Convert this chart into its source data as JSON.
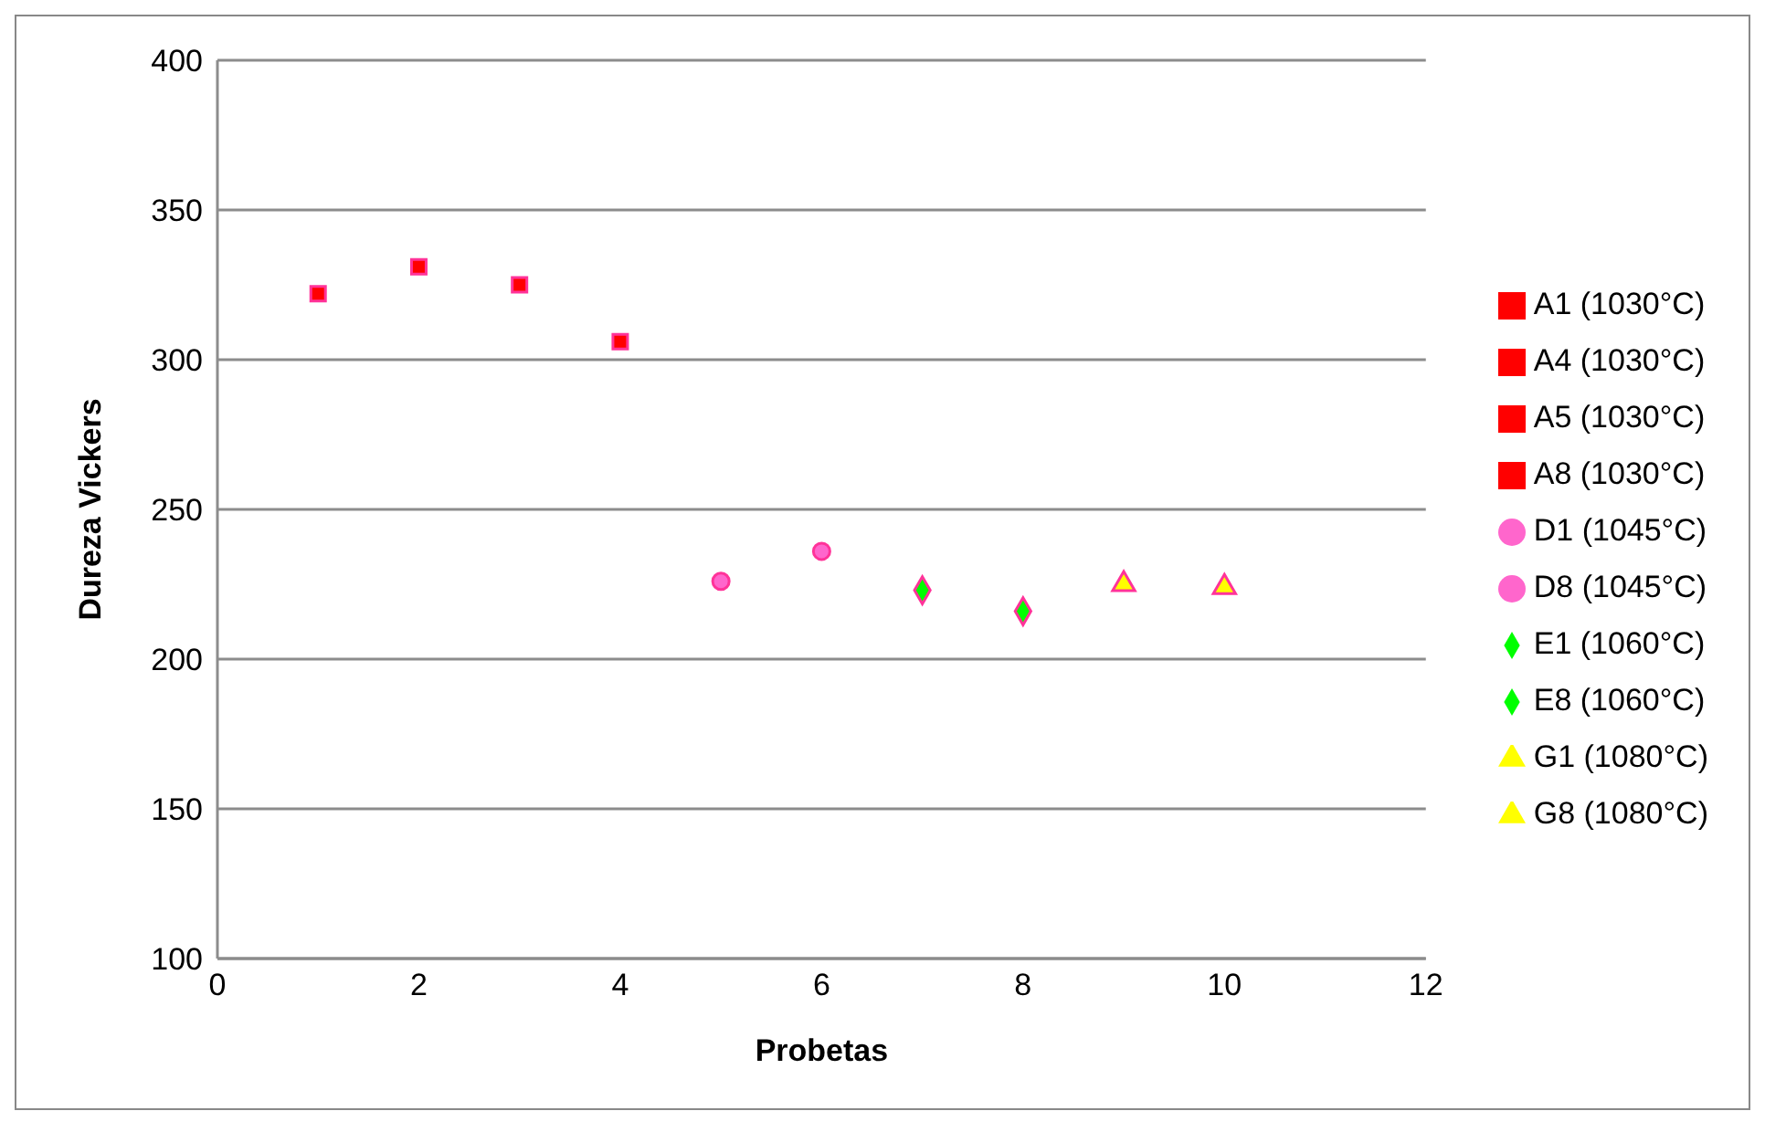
{
  "chart_data": {
    "type": "scatter",
    "xlabel": "Probetas",
    "ylabel": "Dureza Vickers",
    "xlim": [
      0,
      12
    ],
    "xticks": [
      0,
      2,
      4,
      6,
      8,
      10,
      12
    ],
    "ylim": [
      100,
      400
    ],
    "yticks": [
      100,
      150,
      200,
      250,
      300,
      350,
      400
    ],
    "grid": "y",
    "legend": "right",
    "series": [
      {
        "name": "A1 (1030°C)",
        "color": "#ff0000",
        "marker": "square",
        "x": [
          1
        ],
        "values": [
          322
        ]
      },
      {
        "name": "A4 (1030°C)",
        "color": "#ff0000",
        "marker": "square",
        "x": [
          2
        ],
        "values": [
          331
        ]
      },
      {
        "name": "A5 (1030°C)",
        "color": "#ff0000",
        "marker": "square",
        "x": [
          3
        ],
        "values": [
          325
        ]
      },
      {
        "name": "A8 (1030°C)",
        "color": "#ff0000",
        "marker": "square",
        "x": [
          4
        ],
        "values": [
          306
        ]
      },
      {
        "name": "D1 (1045°C)",
        "color": "#ff66cc",
        "marker": "circle",
        "x": [
          5
        ],
        "values": [
          226
        ]
      },
      {
        "name": "D8 (1045°C)",
        "color": "#ff66cc",
        "marker": "circle",
        "x": [
          6
        ],
        "values": [
          236
        ]
      },
      {
        "name": "E1 (1060°C)",
        "color": "#00ff00",
        "marker": "diamond",
        "x": [
          7
        ],
        "values": [
          223
        ]
      },
      {
        "name": "E8 (1060°C)",
        "color": "#00ff00",
        "marker": "diamond",
        "x": [
          8
        ],
        "values": [
          216
        ]
      },
      {
        "name": "G1 (1080°C)",
        "color": "#ffff00",
        "marker": "triangle",
        "x": [
          9
        ],
        "values": [
          225
        ]
      },
      {
        "name": "G8 (1080°C)",
        "color": "#ffff00",
        "marker": "triangle",
        "x": [
          10
        ],
        "values": [
          224
        ]
      }
    ]
  }
}
